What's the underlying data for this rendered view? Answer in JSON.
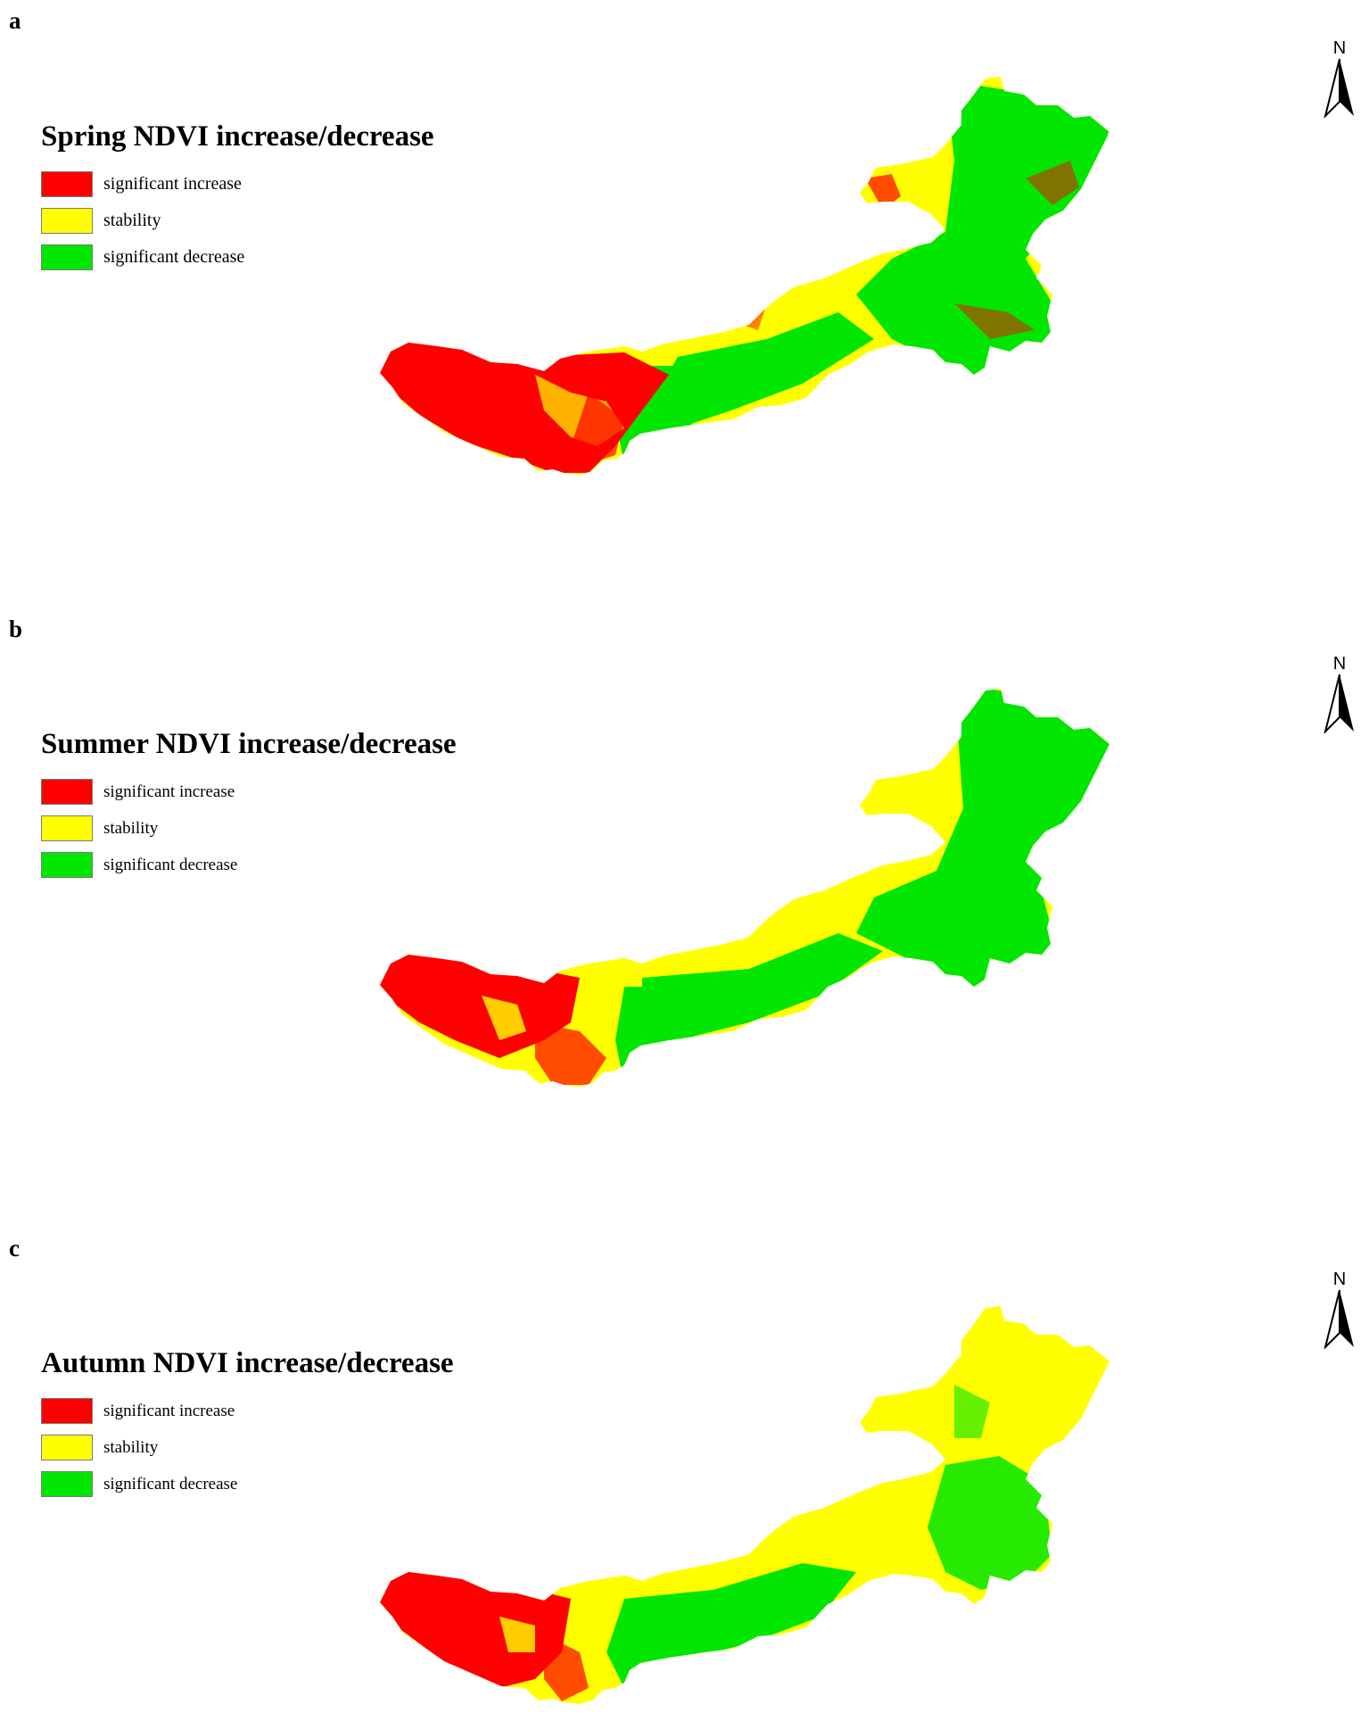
{
  "panels": [
    {
      "letter": "a",
      "title": "Spring NDVI increase/decrease",
      "legend": [
        {
          "label": "significant increase",
          "color": "#ff0000"
        },
        {
          "label": "stability",
          "color": "#ffff00"
        },
        {
          "label": "significant decrease",
          "color": "#00e600"
        }
      ],
      "north_label": "N"
    },
    {
      "letter": "b",
      "title": "Summer NDVI increase/decrease",
      "legend": [
        {
          "label": "significant increase",
          "color": "#ff0000"
        },
        {
          "label": "stability",
          "color": "#ffff00"
        },
        {
          "label": "significant decrease",
          "color": "#00e600"
        }
      ],
      "north_label": "N"
    },
    {
      "letter": "c",
      "title": "Autumn NDVI increase/decrease",
      "legend": [
        {
          "label": "significant increase",
          "color": "#ff0000"
        },
        {
          "label": "stability",
          "color": "#ffff00"
        },
        {
          "label": "significant decrease",
          "color": "#00e600"
        }
      ],
      "north_label": "N"
    }
  ],
  "colors": {
    "increase": "#ff0000",
    "stability": "#ffff00",
    "decrease": "#00e600"
  }
}
